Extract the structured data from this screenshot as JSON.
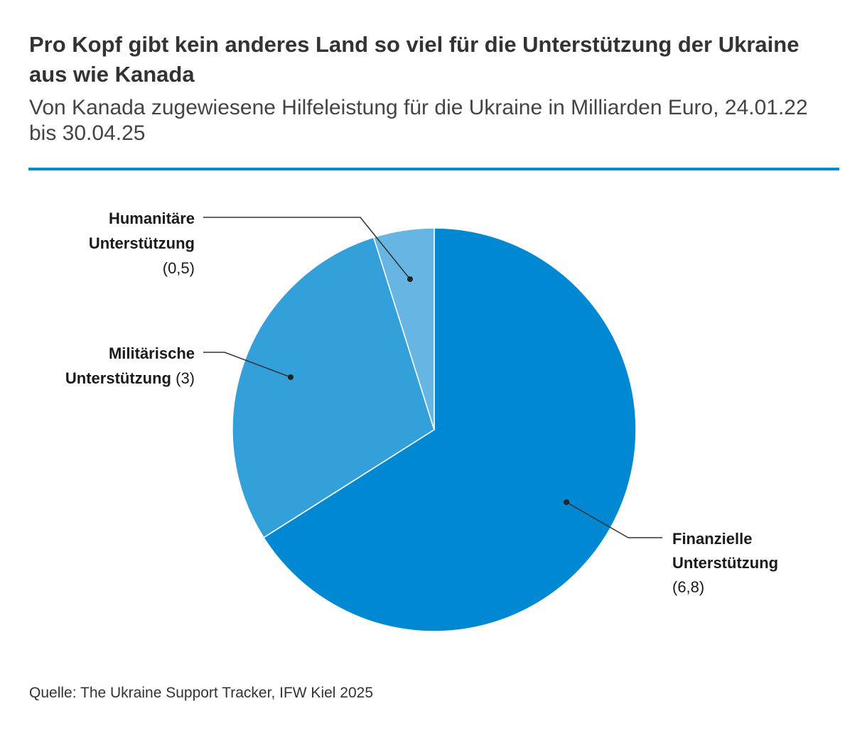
{
  "title": "Pro Kopf gibt kein anderes Land so viel für die Unterstützung der Ukraine aus wie Kanada",
  "subtitle": "Von Kanada zugewiesene Hilfeleistung für die Ukraine in Milliarden Euro, 24.01.22 bis 30.04.25",
  "source": "Quelle: The Ukraine Support Tracker, IFW Kiel 2025",
  "colors": {
    "accent_rule": "#0a88cc",
    "slice_border": "#ffffff",
    "leader": "#333333"
  },
  "chart_data": {
    "type": "pie",
    "start": "top",
    "direction": "clockwise",
    "slices": [
      {
        "label_lines": [
          "Finanzielle",
          "Unterstützung"
        ],
        "value": 6.8,
        "value_text": "(6,8)",
        "color": "#0089d2"
      },
      {
        "label_lines": [
          "Militärische",
          "Unterstützung"
        ],
        "value": 3,
        "value_text": "(3)",
        "color": "#34a0da"
      },
      {
        "label_lines": [
          "Humanitäre",
          "Unterstützung"
        ],
        "value": 0.5,
        "value_text": "(0,5)",
        "color": "#66b5e3"
      }
    ]
  }
}
